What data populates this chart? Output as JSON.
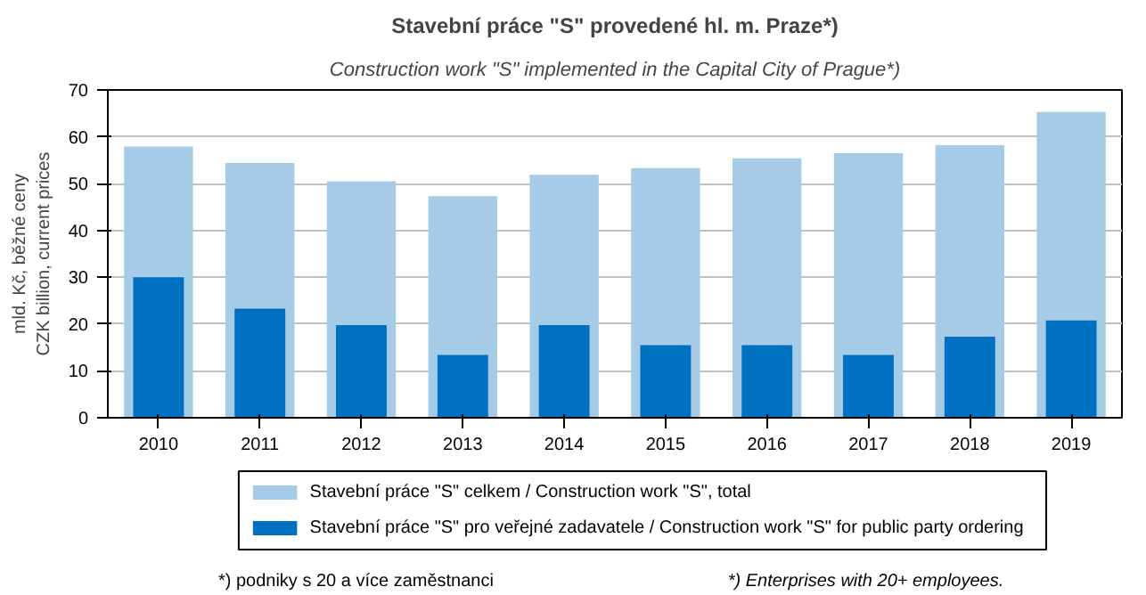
{
  "chart_data": {
    "type": "bar",
    "title": "Stavební práce \"S\" provedené hl. m. Praze*)",
    "subtitle": "Construction work \"S\" implemented in the Capital City of Prague*)",
    "ylabel": "mld. Kč, běžné ceny\nCZK billion, current prices",
    "categories": [
      "2010",
      "2011",
      "2012",
      "2013",
      "2014",
      "2015",
      "2016",
      "2017",
      "2018",
      "2019"
    ],
    "series": [
      {
        "name": "Stavební práce \"S\" celkem / Construction work \"S\", total",
        "color": "#a6cbe6",
        "values": [
          57.9,
          54.4,
          50.5,
          47.3,
          51.9,
          53.3,
          55.4,
          56.5,
          58.2,
          65.3
        ]
      },
      {
        "name": "Stavební práce \"S\" pro veřejné zadavatele / Construction work \"S\" for public party ordering",
        "color": "#0070c0",
        "values": [
          30.0,
          23.3,
          19.8,
          13.4,
          19.8,
          15.5,
          15.5,
          13.4,
          17.3,
          20.8
        ]
      }
    ],
    "ylim": [
      0,
      70
    ],
    "yticks": [
      0,
      10,
      20,
      30,
      40,
      50,
      60,
      70
    ],
    "grid": "y",
    "legend": "bottom",
    "annotations": [
      "*) podniky s 20 a více zaměstnanci",
      "*) Enterprises with 20+ employees."
    ]
  }
}
